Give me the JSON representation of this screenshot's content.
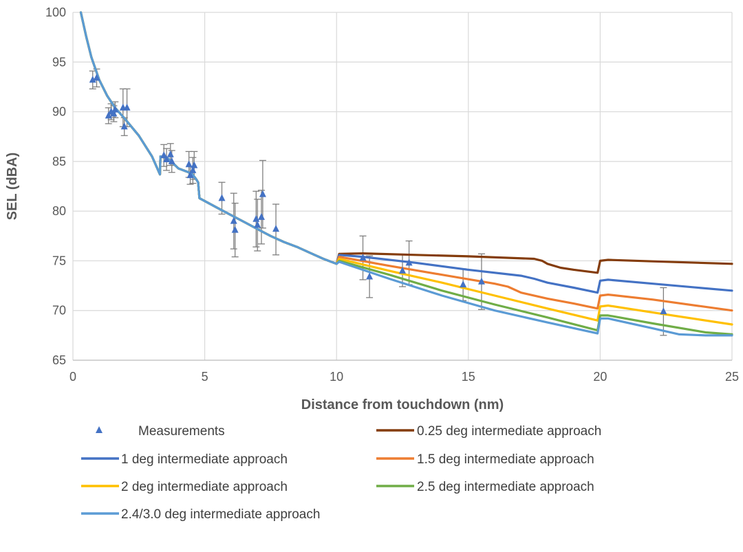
{
  "chart_data": {
    "type": "line",
    "title": "",
    "xlabel": "Distance from touchdown (nm)",
    "ylabel": "SEL (dBA)",
    "xlim": [
      0,
      25
    ],
    "ylim": [
      65,
      100
    ],
    "x_ticks": [
      "0",
      "5",
      "10",
      "15",
      "20",
      "25"
    ],
    "y_ticks": [
      "65",
      "70",
      "75",
      "80",
      "85",
      "90",
      "95",
      "100"
    ],
    "grid": true,
    "legend_position": "bottom",
    "measurements": {
      "name": "Measurements",
      "color": "#4472C4",
      "marker": "triangle",
      "points": [
        {
          "x": 0.75,
          "y": 93.2,
          "lo": 92.3,
          "hi": 94.1
        },
        {
          "x": 0.9,
          "y": 93.4,
          "lo": 92.5,
          "hi": 94.3
        },
        {
          "x": 1.35,
          "y": 89.6,
          "lo": 88.8,
          "hi": 90.4
        },
        {
          "x": 1.45,
          "y": 90.0,
          "lo": 89.2,
          "hi": 90.8
        },
        {
          "x": 1.55,
          "y": 89.8,
          "lo": 89.0,
          "hi": 90.6
        },
        {
          "x": 1.6,
          "y": 90.2,
          "lo": 89.4,
          "hi": 91.0
        },
        {
          "x": 1.9,
          "y": 90.4,
          "lo": 88.5,
          "hi": 92.3
        },
        {
          "x": 1.95,
          "y": 88.5,
          "lo": 87.6,
          "hi": 89.4
        },
        {
          "x": 2.05,
          "y": 90.4,
          "lo": 88.5,
          "hi": 92.3
        },
        {
          "x": 3.45,
          "y": 85.6,
          "lo": 84.5,
          "hi": 86.7
        },
        {
          "x": 3.55,
          "y": 85.2,
          "lo": 84.1,
          "hi": 86.3
        },
        {
          "x": 3.7,
          "y": 85.7,
          "lo": 84.6,
          "hi": 86.8
        },
        {
          "x": 3.75,
          "y": 85.0,
          "lo": 83.9,
          "hi": 86.1
        },
        {
          "x": 4.4,
          "y": 84.7,
          "lo": 83.4,
          "hi": 86.0
        },
        {
          "x": 4.45,
          "y": 83.6,
          "lo": 82.7,
          "hi": 84.5
        },
        {
          "x": 4.55,
          "y": 84.1,
          "lo": 82.8,
          "hi": 85.4
        },
        {
          "x": 4.6,
          "y": 84.6,
          "lo": 83.2,
          "hi": 86.0
        },
        {
          "x": 5.65,
          "y": 81.3,
          "lo": 79.7,
          "hi": 82.9
        },
        {
          "x": 6.1,
          "y": 79.0,
          "lo": 76.2,
          "hi": 81.8
        },
        {
          "x": 6.15,
          "y": 78.1,
          "lo": 75.4,
          "hi": 80.8
        },
        {
          "x": 6.95,
          "y": 79.2,
          "lo": 76.4,
          "hi": 82.0
        },
        {
          "x": 7.0,
          "y": 78.6,
          "lo": 76.0,
          "hi": 81.2
        },
        {
          "x": 7.15,
          "y": 79.4,
          "lo": 76.7,
          "hi": 82.1
        },
        {
          "x": 7.2,
          "y": 81.7,
          "lo": 78.3,
          "hi": 85.1
        },
        {
          "x": 7.7,
          "y": 78.2,
          "lo": 75.6,
          "hi": 80.7
        },
        {
          "x": 11.0,
          "y": 75.3,
          "lo": 73.1,
          "hi": 77.5
        },
        {
          "x": 11.25,
          "y": 73.4,
          "lo": 71.3,
          "hi": 75.5
        },
        {
          "x": 12.5,
          "y": 74.0,
          "lo": 72.4,
          "hi": 75.6
        },
        {
          "x": 12.75,
          "y": 74.8,
          "lo": 72.6,
          "hi": 77.0
        },
        {
          "x": 14.8,
          "y": 72.6,
          "lo": 71.0,
          "hi": 74.2
        },
        {
          "x": 15.5,
          "y": 72.9,
          "lo": 70.1,
          "hi": 75.7
        },
        {
          "x": 22.4,
          "y": 69.9,
          "lo": 67.5,
          "hi": 72.3
        }
      ]
    },
    "common_segment": [
      [
        0.3,
        100
      ],
      [
        0.5,
        97.6
      ],
      [
        0.7,
        95.5
      ],
      [
        1.0,
        93.2
      ],
      [
        1.3,
        91.6
      ],
      [
        1.6,
        90.4
      ],
      [
        2.0,
        89.2
      ],
      [
        2.5,
        87.6
      ],
      [
        3.0,
        85.5
      ],
      [
        3.3,
        83.7
      ],
      [
        3.32,
        85.5
      ],
      [
        3.6,
        85.3
      ],
      [
        4.0,
        84.3
      ],
      [
        4.5,
        83.8
      ],
      [
        4.65,
        83.3
      ],
      [
        4.75,
        82.9
      ],
      [
        4.8,
        81.3
      ],
      [
        5.5,
        80.3
      ],
      [
        6.0,
        79.6
      ],
      [
        6.5,
        78.9
      ],
      [
        7.0,
        78.2
      ],
      [
        7.5,
        77.5
      ],
      [
        8.0,
        76.9
      ],
      [
        8.5,
        76.4
      ],
      [
        9.0,
        75.8
      ],
      [
        9.5,
        75.2
      ],
      [
        10.0,
        74.7
      ]
    ],
    "series": [
      {
        "name": "0.25 deg intermediate approach",
        "color": "#843C0C",
        "values": [
          [
            10.0,
            74.7
          ],
          [
            10.1,
            75.7
          ],
          [
            11.0,
            75.75
          ],
          [
            13.0,
            75.6
          ],
          [
            15.0,
            75.45
          ],
          [
            17.5,
            75.2
          ],
          [
            17.8,
            75.0
          ],
          [
            18.0,
            74.7
          ],
          [
            18.5,
            74.3
          ],
          [
            19.0,
            74.1
          ],
          [
            19.9,
            73.8
          ],
          [
            20.0,
            75.0
          ],
          [
            20.3,
            75.1
          ],
          [
            22.0,
            74.95
          ],
          [
            25.0,
            74.7
          ]
        ]
      },
      {
        "name": "1 deg intermediate approach",
        "color": "#4472C4",
        "values": [
          [
            10.0,
            74.7
          ],
          [
            10.1,
            75.6
          ],
          [
            11.0,
            75.4
          ],
          [
            13.0,
            74.8
          ],
          [
            15.0,
            74.1
          ],
          [
            17.0,
            73.5
          ],
          [
            17.5,
            73.2
          ],
          [
            18.0,
            72.8
          ],
          [
            19.0,
            72.3
          ],
          [
            19.9,
            71.8
          ],
          [
            20.0,
            73.0
          ],
          [
            20.3,
            73.1
          ],
          [
            22.0,
            72.7
          ],
          [
            25.0,
            72.0
          ]
        ]
      },
      {
        "name": "1.5 deg intermediate approach",
        "color": "#ED7D31",
        "values": [
          [
            10.0,
            74.7
          ],
          [
            10.1,
            75.4
          ],
          [
            12.0,
            74.5
          ],
          [
            14.0,
            73.6
          ],
          [
            16.0,
            72.7
          ],
          [
            16.5,
            72.4
          ],
          [
            17.0,
            71.8
          ],
          [
            18.0,
            71.2
          ],
          [
            19.0,
            70.7
          ],
          [
            19.9,
            70.2
          ],
          [
            20.0,
            71.5
          ],
          [
            20.3,
            71.6
          ],
          [
            22.0,
            71.1
          ],
          [
            25.0,
            70.0
          ]
        ]
      },
      {
        "name": "2 deg intermediate approach",
        "color": "#FFC000",
        "values": [
          [
            10.0,
            74.7
          ],
          [
            10.1,
            75.2
          ],
          [
            12.0,
            74.0
          ],
          [
            14.0,
            72.8
          ],
          [
            16.0,
            71.5
          ],
          [
            18.0,
            70.2
          ],
          [
            19.9,
            69.0
          ],
          [
            20.0,
            70.4
          ],
          [
            20.3,
            70.5
          ],
          [
            22.0,
            69.8
          ],
          [
            25.0,
            68.6
          ]
        ]
      },
      {
        "name": "2.5 deg intermediate approach",
        "color": "#70AD47",
        "values": [
          [
            10.0,
            74.7
          ],
          [
            10.1,
            75.0
          ],
          [
            12.0,
            73.6
          ],
          [
            14.0,
            72.0
          ],
          [
            16.0,
            70.6
          ],
          [
            18.0,
            69.3
          ],
          [
            19.9,
            68.0
          ],
          [
            20.0,
            69.5
          ],
          [
            20.3,
            69.5
          ],
          [
            22.0,
            68.7
          ],
          [
            24.0,
            67.8
          ],
          [
            25.0,
            67.6
          ]
        ]
      },
      {
        "name": "2.4/3.0 deg intermediate approach",
        "color": "#5B9BD5",
        "values": [
          [
            10.0,
            74.5
          ],
          [
            10.1,
            74.9
          ],
          [
            12.0,
            73.2
          ],
          [
            14.0,
            71.5
          ],
          [
            16.0,
            70.0
          ],
          [
            18.0,
            68.8
          ],
          [
            19.9,
            67.7
          ],
          [
            20.0,
            69.2
          ],
          [
            20.3,
            69.2
          ],
          [
            22.0,
            68.2
          ],
          [
            23.0,
            67.6
          ],
          [
            24.0,
            67.5
          ],
          [
            25.0,
            67.5
          ]
        ]
      }
    ]
  }
}
